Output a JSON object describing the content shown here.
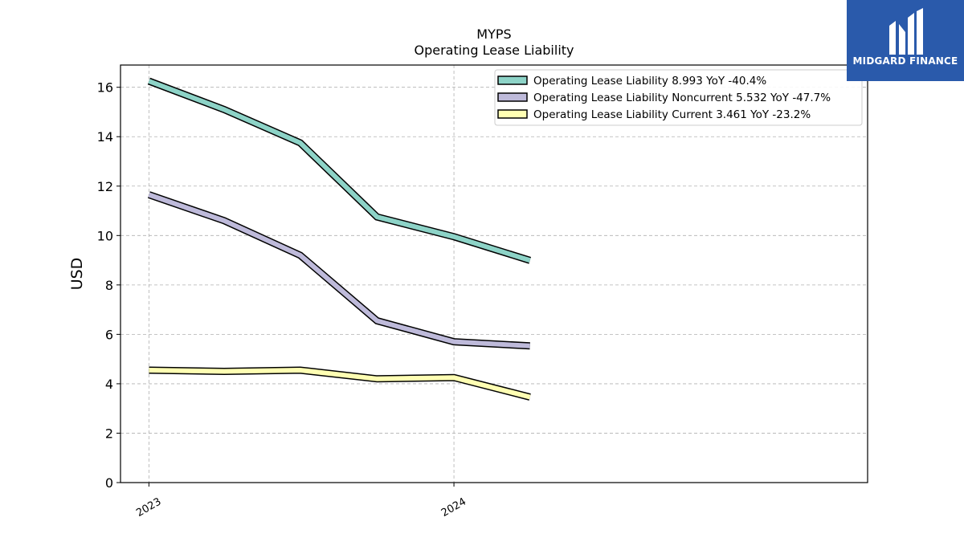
{
  "brand": {
    "name": "MIDGARD FINANCE",
    "color": "#2a5aab"
  },
  "chart_data": {
    "type": "line",
    "title": "MYPS",
    "subtitle": "Operating Lease Liability",
    "ylabel": "USD",
    "xlabel": "",
    "ylim": [
      0,
      16.9
    ],
    "yticks": [
      0,
      2,
      4,
      6,
      8,
      10,
      12,
      14,
      16
    ],
    "xlim": [
      "2022-11-28",
      "2025-05-10"
    ],
    "xticks": [
      {
        "date": "2023-01-01",
        "label": "2023"
      },
      {
        "date": "2024-01-01",
        "label": "2024"
      }
    ],
    "x": [
      "2023-01-01",
      "2023-04-01",
      "2023-07-01",
      "2023-10-01",
      "2024-01-01",
      "2024-04-01"
    ],
    "grid": true,
    "legend_position": "top-right",
    "series": [
      {
        "name": "Operating Lease Liability",
        "legend": "Operating Lease Liability  8.993 YoY -40.4%",
        "color": "#8dd3c7",
        "values": [
          16.25,
          15.1,
          13.75,
          10.75,
          9.95,
          8.993
        ]
      },
      {
        "name": "Operating Lease Liability Noncurrent",
        "legend": "Operating Lease Liability Noncurrent  5.532 YoY -47.7%",
        "color": "#bebada",
        "values": [
          11.65,
          10.6,
          9.2,
          6.55,
          5.7,
          5.532
        ]
      },
      {
        "name": "Operating Lease Liability Current",
        "legend": "Operating Lease Liability Current  3.461 YoY -23.2%",
        "color": "#ffffb3",
        "values": [
          4.55,
          4.5,
          4.55,
          4.2,
          4.25,
          3.461
        ]
      }
    ]
  }
}
